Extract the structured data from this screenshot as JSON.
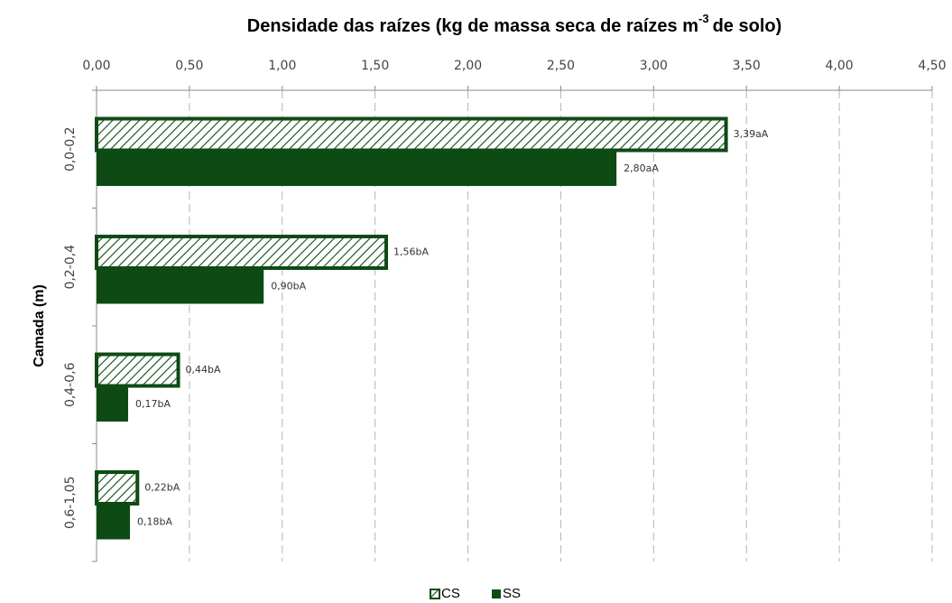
{
  "chart_data": {
    "type": "hbar",
    "title": {
      "text": "Densidade das raízes (kg de massa seca de raízes m",
      "superscript": "-3",
      "suffix": "de solo)"
    },
    "y_label": "Camada (m)",
    "categories": [
      "0,0-0,2",
      "0,2-0,4",
      "0,4-0,6",
      "0,6-1,05"
    ],
    "series": [
      {
        "name": "CS",
        "color": "#0d4a14",
        "hatch": true,
        "values": [
          3.39,
          1.56,
          0.44,
          0.22
        ],
        "value_labels": [
          "3,39aA",
          "1,56bA",
          "0,44bA",
          "0,22bA"
        ]
      },
      {
        "name": "SS",
        "color": "#0d4a14",
        "hatch": false,
        "values": [
          2.8,
          0.9,
          0.17,
          0.18
        ],
        "value_labels": [
          "2,80aA",
          "0,90bA",
          "0,17bA",
          "0,18bA"
        ]
      }
    ],
    "xlim": [
      0,
      4.5
    ],
    "xticks": [
      {
        "value": 0,
        "label": "0,00"
      },
      {
        "value": 0.5,
        "label": "0,50"
      },
      {
        "value": 1,
        "label": "1,00"
      },
      {
        "value": 1.5,
        "label": "1,50"
      },
      {
        "value": 2,
        "label": "2,00"
      },
      {
        "value": 2.5,
        "label": "2,50"
      },
      {
        "value": 3,
        "label": "3,00"
      },
      {
        "value": 3.5,
        "label": "3,50"
      },
      {
        "value": 4,
        "label": "4,00"
      },
      {
        "value": 4.5,
        "label": "4,50"
      }
    ],
    "grid": true,
    "legend": "bottom"
  }
}
